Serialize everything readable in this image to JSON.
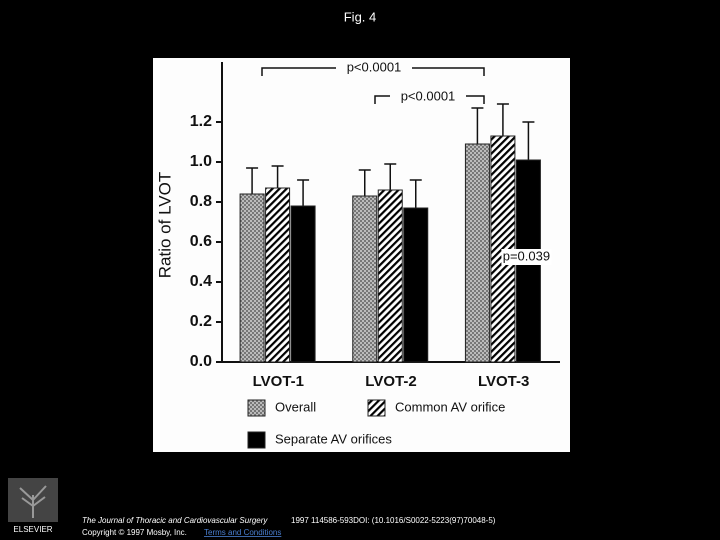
{
  "slide_title": "Fig. 4",
  "chart_data": {
    "type": "bar",
    "ylabel": "Ratio of LVOT",
    "categories": [
      "LVOT-1",
      "LVOT-2",
      "LVOT-3"
    ],
    "series": [
      {
        "name": "Overall",
        "color": "#8c8c8c",
        "pattern": "checker",
        "values": [
          0.84,
          0.83,
          1.09
        ],
        "errors": [
          0.13,
          0.13,
          0.18
        ]
      },
      {
        "name": "Common AV orifice",
        "color": "#000000",
        "pattern": "hatch",
        "values": [
          0.87,
          0.86,
          1.13
        ],
        "errors": [
          0.11,
          0.13,
          0.16
        ]
      },
      {
        "name": "Separate AV orifices",
        "color": "#000000",
        "pattern": "solid",
        "values": [
          0.78,
          0.77,
          1.01
        ],
        "errors": [
          0.13,
          0.14,
          0.19
        ]
      }
    ],
    "ylim": [
      0,
      1.5
    ],
    "yticks": [
      {
        "value": 0,
        "label": "0.0"
      },
      0.2,
      0.4,
      0.6,
      0.8,
      {
        "value": 1,
        "label": "1.0"
      },
      1.2
    ],
    "annotations": [
      "p<0.0001",
      "p<0.0001",
      "p=0.039"
    ]
  },
  "footer": {
    "publisher": "ELSEVIER",
    "journal": "The Journal of Thoracic and Cardiovascular Surgery",
    "citation": "1997 114586-593DOI: (10.1016/S0022-5223(97)70048-5)",
    "copyright": "Copyright © 1997 Mosby, Inc.",
    "link": "Terms and Conditions"
  }
}
